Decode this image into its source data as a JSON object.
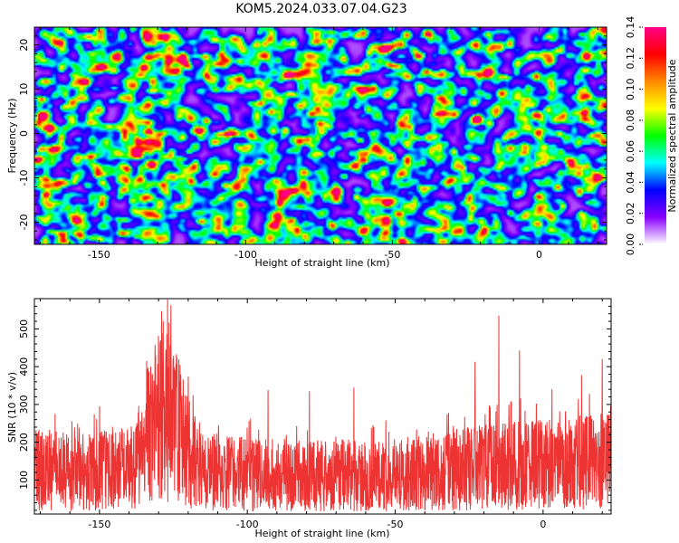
{
  "title": "KOM5.2024.033.07.04.G23",
  "chart_data": [
    {
      "type": "heatmap",
      "xlabel": "Height of straight line (km)",
      "ylabel": "Frequency (Hz)",
      "xlim": [
        -172,
        23
      ],
      "ylim": [
        -25,
        24
      ],
      "x_ticks": [
        -150,
        -100,
        -50,
        0
      ],
      "y_ticks": [
        -20,
        -10,
        0,
        10,
        20
      ],
      "colorbar": {
        "label": "Normalized spectral amplitude",
        "range": [
          0,
          0.14
        ],
        "ticks": [
          "0.00",
          "0.02",
          "0.04",
          "0.06",
          "0.08",
          "0.10",
          "0.12",
          "0.14"
        ],
        "colormap": [
          "#ffffff",
          "#8800ff",
          "#0000ff",
          "#00ffff",
          "#00ff00",
          "#ffff00",
          "#ff8800",
          "#ff0000",
          "#ff0088"
        ]
      },
      "peaks": [
        {
          "x": -166,
          "y": -3.5,
          "value": 0.13
        },
        {
          "x": -52,
          "y": 19.5,
          "value": 0.13
        },
        {
          "x": -48,
          "y": -18,
          "value": 0.13
        },
        {
          "x": -124,
          "y": 14.5,
          "value": 0.11
        },
        {
          "x": -10,
          "y": -3,
          "value": 0.11
        },
        {
          "x": -22,
          "y": -5.5,
          "value": 0.1
        },
        {
          "x": 21,
          "y": -10,
          "value": 0.1
        },
        {
          "x": -142,
          "y": -12.5,
          "value": 0.1
        },
        {
          "x": -128,
          "y": 22,
          "value": 0.09
        },
        {
          "x": -92,
          "y": 5,
          "value": 0.09
        },
        {
          "x": -22,
          "y": 3.5,
          "value": 0.09
        },
        {
          "x": -133,
          "y": 2.5,
          "value": 0.09
        },
        {
          "x": -60,
          "y": -6,
          "value": 0.09
        },
        {
          "x": -155,
          "y": 12,
          "value": 0.08
        },
        {
          "x": 5,
          "y": 3,
          "value": 0.08
        },
        {
          "x": -37,
          "y": -21.5,
          "value": 0.08
        },
        {
          "x": -40,
          "y": -12.5,
          "value": 0.08
        },
        {
          "x": -45,
          "y": 13,
          "value": 0.08
        },
        {
          "x": -76,
          "y": 21,
          "value": 0.08
        },
        {
          "x": -103,
          "y": -12,
          "value": 0.08
        }
      ],
      "noise_level": 0.03
    },
    {
      "type": "line",
      "xlabel": "Height of straight line (km)",
      "ylabel": "SNR (10 * v/v)",
      "xlim": [
        -172,
        23
      ],
      "ylim": [
        10,
        580
      ],
      "x_ticks": [
        -150,
        -100,
        -50,
        0
      ],
      "y_ticks": [
        100,
        200,
        300,
        400,
        500
      ],
      "color": "#ee3333",
      "series": [
        {
          "x": [
            -172,
            -165,
            -160,
            -155,
            -150,
            -145,
            -140,
            -135,
            -132,
            -129,
            -127,
            -125,
            -122,
            -120,
            -117,
            -115,
            -110,
            -105,
            -100,
            -95,
            -90,
            -85,
            -80,
            -75,
            -70,
            -65,
            -60,
            -55,
            -50,
            -45,
            -40,
            -35,
            -30,
            -25,
            -20,
            -15,
            -10,
            -5,
            0,
            5,
            10,
            15,
            20,
            23
          ],
          "values": [
            125,
            128,
            120,
            122,
            124,
            126,
            132,
            172,
            248,
            268,
            264,
            252,
            215,
            168,
            130,
            122,
            120,
            116,
            115,
            114,
            112,
            112,
            110,
            112,
            113,
            112,
            110,
            114,
            118,
            116,
            120,
            124,
            128,
            130,
            134,
            136,
            138,
            140,
            142,
            142,
            146,
            148,
            150,
            152
          ],
          "peaks": [
            {
              "x": -127,
              "y": 578
            },
            {
              "x": -129,
              "y": 547
            },
            {
              "x": -134,
              "y": 415
            },
            {
              "x": -131,
              "y": 430
            },
            {
              "x": -125,
              "y": 406
            },
            {
              "x": -120,
              "y": 374
            },
            {
              "x": -15,
              "y": 535
            },
            {
              "x": -8,
              "y": 443
            },
            {
              "x": -23,
              "y": 413
            },
            {
              "x": 20,
              "y": 420
            },
            {
              "x": 13,
              "y": 378
            },
            {
              "x": -64,
              "y": 345
            },
            {
              "x": -93,
              "y": 338
            },
            {
              "x": -79,
              "y": 335
            },
            {
              "x": -165,
              "y": 275
            },
            {
              "x": -150,
              "y": 295
            },
            {
              "x": 3,
              "y": 340
            }
          ]
        }
      ]
    }
  ]
}
